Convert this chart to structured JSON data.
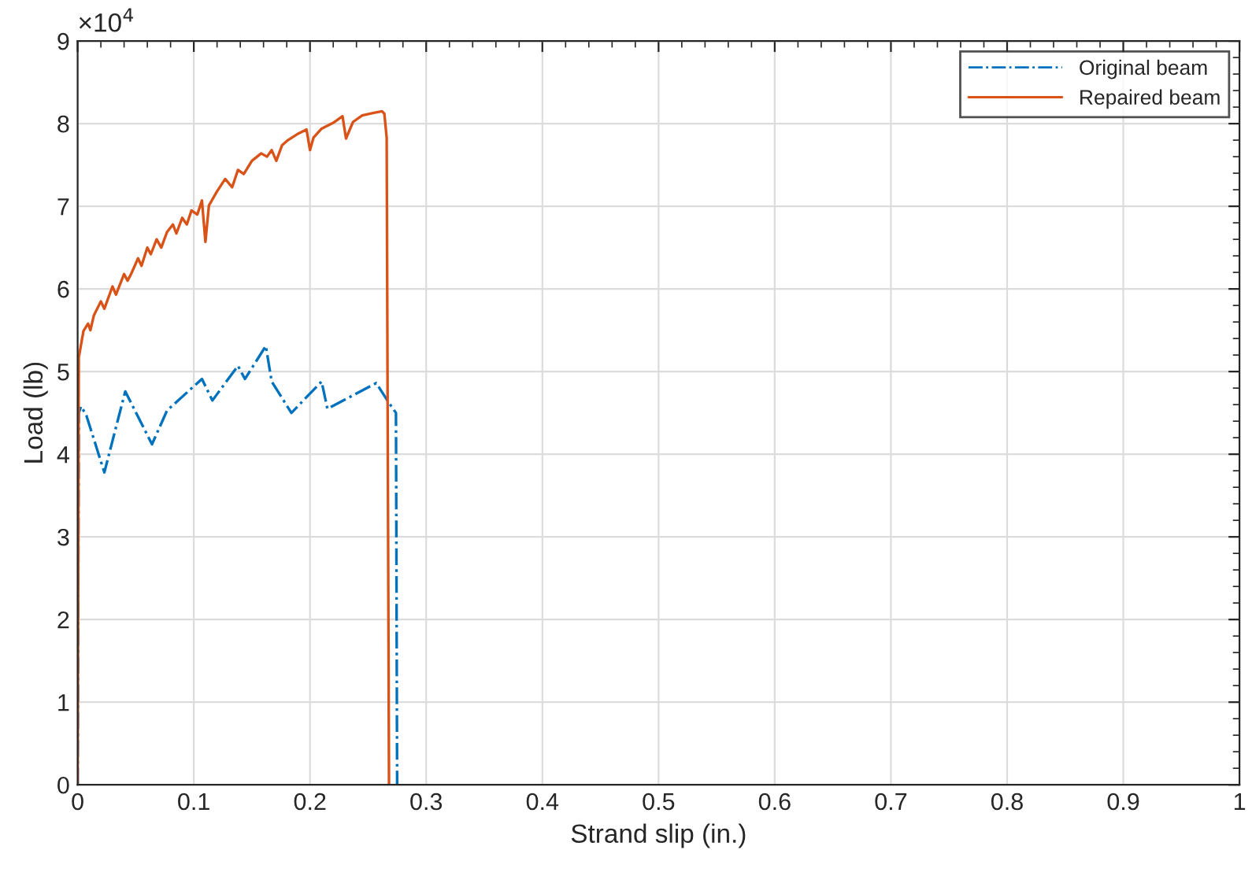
{
  "chart_data": {
    "type": "line",
    "xlabel": "Strand slip (in.)",
    "ylabel": "Load (lb)",
    "xlim": [
      0,
      1
    ],
    "xticks": [
      0,
      0.1,
      0.2,
      0.3,
      0.4,
      0.5,
      0.6,
      0.7,
      0.8,
      0.9,
      1
    ],
    "ylim": [
      0,
      9
    ],
    "yticks": [
      0,
      1,
      2,
      3,
      4,
      5,
      6,
      7,
      8,
      9
    ],
    "annotations": [
      "×10$^{4}$"
    ],
    "grid": true,
    "legend": "top right",
    "series": [
      {
        "name": "Original beam",
        "color": "#0072bd",
        "line_style": "dashed",
        "marker": "none",
        "x": [
          0,
          0.001,
          0.003,
          0.0075,
          0.023,
          0.041,
          0.064,
          0.077,
          0.107,
          0.116,
          0.138,
          0.144,
          0.162,
          0.167,
          0.184,
          0.21,
          0.215,
          0.257,
          0.269,
          0.274,
          0.275
        ],
        "values": [
          0,
          4.5,
          4.58,
          4.47,
          3.78,
          4.76,
          4.12,
          4.53,
          4.91,
          4.65,
          5.07,
          4.91,
          5.31,
          4.88,
          4.5,
          4.88,
          4.55,
          4.86,
          4.6,
          4.5,
          0
        ]
      },
      {
        "name": "Repaired beam",
        "color": "#d95319",
        "line_style": "solid",
        "marker": "none",
        "x": [
          0,
          0.001,
          0.005,
          0.009,
          0.011,
          0.014,
          0.02,
          0.023,
          0.03,
          0.033,
          0.04,
          0.043,
          0.046,
          0.052,
          0.055,
          0.06,
          0.063,
          0.068,
          0.072,
          0.077,
          0.082,
          0.085,
          0.09,
          0.094,
          0.098,
          0.103,
          0.107,
          0.11,
          0.113,
          0.12,
          0.127,
          0.133,
          0.138,
          0.143,
          0.15,
          0.158,
          0.163,
          0.167,
          0.171,
          0.176,
          0.181,
          0.19,
          0.197,
          0.2,
          0.203,
          0.21,
          0.22,
          0.228,
          0.231,
          0.237,
          0.245,
          0.255,
          0.262,
          0.264,
          0.266,
          0.268
        ],
        "values": [
          0,
          5.17,
          5.49,
          5.58,
          5.5,
          5.68,
          5.85,
          5.76,
          6.03,
          5.93,
          6.18,
          6.1,
          6.18,
          6.37,
          6.28,
          6.5,
          6.42,
          6.6,
          6.5,
          6.69,
          6.78,
          6.67,
          6.86,
          6.78,
          6.95,
          6.9,
          7.07,
          6.57,
          7.01,
          7.18,
          7.33,
          7.23,
          7.44,
          7.39,
          7.55,
          7.64,
          7.6,
          7.68,
          7.55,
          7.74,
          7.8,
          7.88,
          7.93,
          7.68,
          7.83,
          7.94,
          8.01,
          8.09,
          7.82,
          8.02,
          8.1,
          8.13,
          8.15,
          8.12,
          7.83,
          0
        ]
      }
    ]
  }
}
